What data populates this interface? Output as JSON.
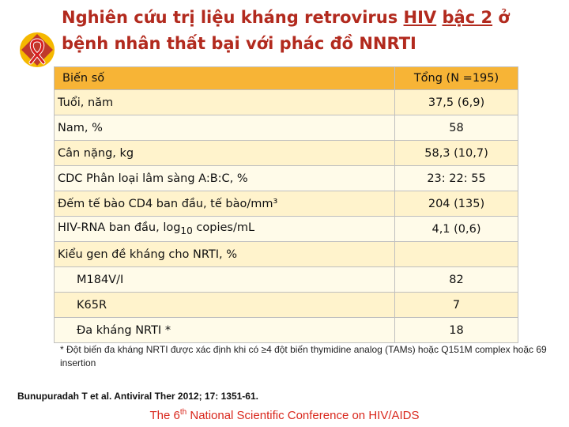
{
  "title": {
    "line1_pre": "Nghiên cứu trị liệu kháng retrovirus ",
    "line1_u1": "HIV",
    "line1_sp": " ",
    "line1_u2": "bậc 2",
    "line1_post": " ở",
    "line2": "bệnh nhân thất bại với phác đồ NNRTI"
  },
  "table": {
    "headers": [
      "Biến số",
      "Tổng (N =195)"
    ],
    "rows": [
      {
        "label": "Tuổi, năm",
        "value": "37,5 (6,9)"
      },
      {
        "label": "Nam, %",
        "value": "58"
      },
      {
        "label": "Cân nặng, kg",
        "value": "58,3 (10,7)"
      },
      {
        "label": "CDC Phân loại lâm sàng A:B:C, %",
        "value": "23: 22: 55"
      },
      {
        "label": "Đếm tế bào CD4 ban đầu, tế bào/mm³",
        "value": "204 (135)"
      },
      {
        "label_pre": "HIV-RNA ban đầu, log",
        "label_sub": "10",
        "label_post": " copies/mL",
        "value": "4,1 (0,6)"
      },
      {
        "label": "Kiểu gen đề kháng cho NRTI, %",
        "value": ""
      },
      {
        "label": "M184V/I",
        "value": "82"
      },
      {
        "label": "K65R",
        "value": "7"
      },
      {
        "label": "Đa kháng NRTI *",
        "value": "18"
      }
    ]
  },
  "footnote": "* Đột biến đa kháng NRTI được xác định khi có ≥4 đột biến thymidine analog (TAMs) hoặc Q151M complex hoặc 69 insertion",
  "citation": "Bunupuradah T et al. Antiviral Ther 2012; 17: 1351-61.",
  "conference": {
    "pre": "The 6",
    "sup": "th",
    "post": " National Scientific Conference on HIV/AIDS"
  },
  "logo": {
    "icon": "red-ribbon-icon",
    "colors": {
      "circle": "#f5b800",
      "diamond": "#c0392b",
      "ribbon": "#d62020"
    }
  },
  "colors": {
    "title": "#b22a1e",
    "header_bg": "#f7b436",
    "row_odd": "#fff3cc",
    "row_even": "#fffbe9",
    "conference": "#d9281d"
  }
}
